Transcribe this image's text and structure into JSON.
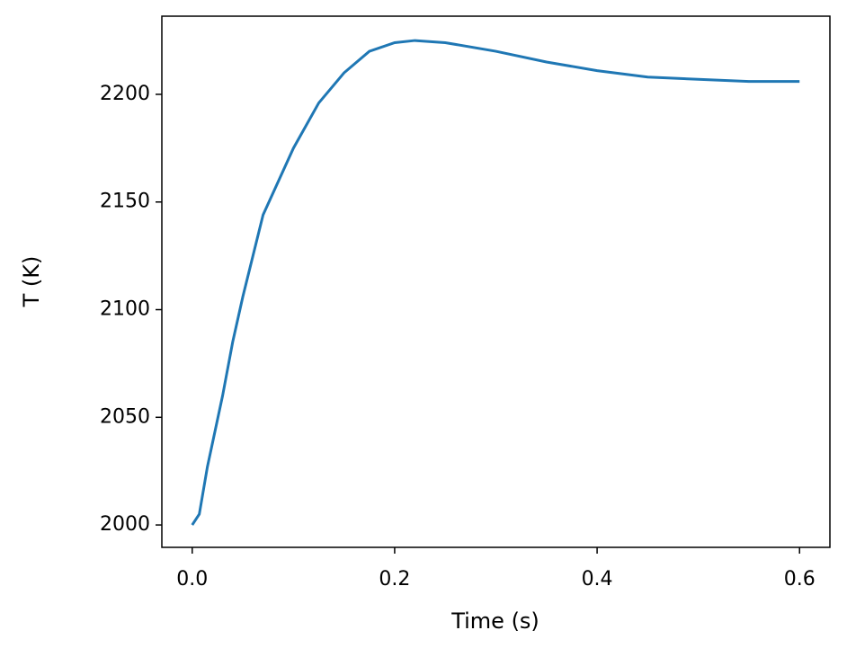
{
  "chart_data": {
    "type": "line",
    "x_label": "Time (s)",
    "y_label": "T (K)",
    "x": [
      0,
      0.007,
      0.015,
      0.03,
      0.04,
      0.05,
      0.07,
      0.1,
      0.125,
      0.15,
      0.175,
      0.2,
      0.22,
      0.25,
      0.3,
      0.35,
      0.4,
      0.45,
      0.5,
      0.55,
      0.6
    ],
    "series": [
      {
        "name": "T",
        "color": "#1f77b4",
        "values": [
          2000,
          2005,
          2027,
          2060,
          2085,
          2106,
          2144,
          2175,
          2196,
          2210,
          2220,
          2224,
          2225,
          2224,
          2220,
          2215,
          2211,
          2208,
          2207,
          2206,
          2206
        ]
      }
    ],
    "xlim": [
      -0.03,
      0.63
    ],
    "ylim": [
      1989.6,
      2236.3
    ],
    "xticks": [
      {
        "value": 0,
        "label": "0.0"
      },
      {
        "value": 0.2,
        "label": "0.2"
      },
      {
        "value": 0.4,
        "label": "0.4"
      },
      {
        "value": 0.6,
        "label": "0.6"
      }
    ],
    "yticks": [
      2000,
      2050,
      2100,
      2150,
      2200
    ],
    "grid": false
  }
}
